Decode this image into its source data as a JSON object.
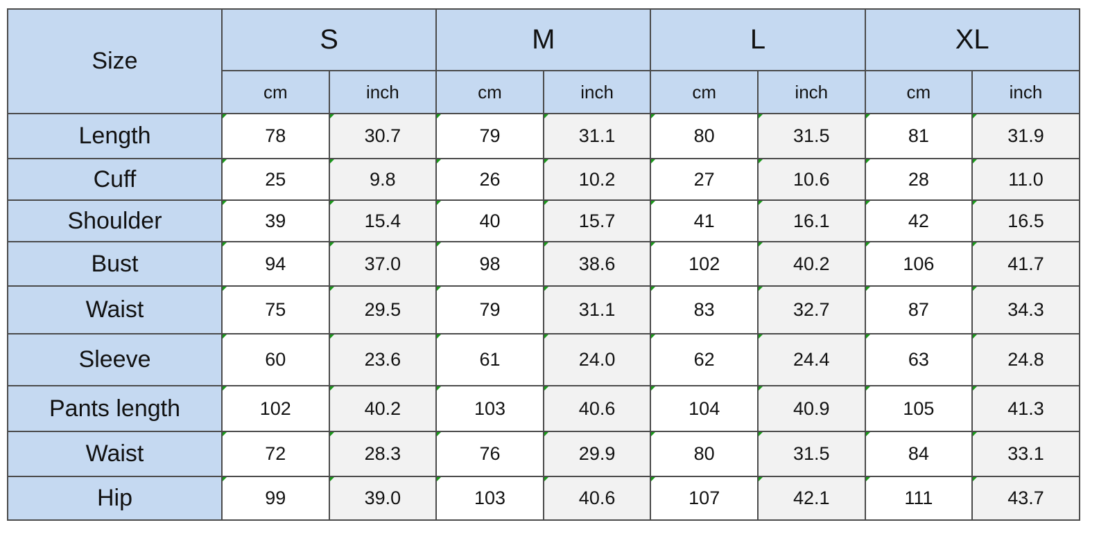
{
  "table": {
    "corner": "Size",
    "sizes": [
      "S",
      "M",
      "L",
      "XL"
    ],
    "units": [
      "cm",
      "inch",
      "cm",
      "inch",
      "cm",
      "inch",
      "cm",
      "inch"
    ],
    "rows": [
      {
        "label": "Length",
        "cells": [
          "78",
          "30.7",
          "79",
          "31.1",
          "80",
          "31.5",
          "81",
          "31.9"
        ]
      },
      {
        "label": "Cuff",
        "cells": [
          "25",
          "9.8",
          "26",
          "10.2",
          "27",
          "10.6",
          "28",
          "11.0"
        ]
      },
      {
        "label": "Shoulder",
        "cells": [
          "39",
          "15.4",
          "40",
          "15.7",
          "41",
          "16.1",
          "42",
          "16.5"
        ]
      },
      {
        "label": "Bust",
        "cells": [
          "94",
          "37.0",
          "98",
          "38.6",
          "102",
          "40.2",
          "106",
          "41.7"
        ]
      },
      {
        "label": "Waist",
        "cells": [
          "75",
          "29.5",
          "79",
          "31.1",
          "83",
          "32.7",
          "87",
          "34.3"
        ]
      },
      {
        "label": "Sleeve",
        "cells": [
          "60",
          "23.6",
          "61",
          "24.0",
          "62",
          "24.4",
          "63",
          "24.8"
        ]
      },
      {
        "label": "Pants length",
        "cells": [
          "102",
          "40.2",
          "103",
          "40.6",
          "104",
          "40.9",
          "105",
          "41.3"
        ]
      },
      {
        "label": "Waist",
        "cells": [
          "72",
          "28.3",
          "76",
          "29.9",
          "80",
          "31.5",
          "84",
          "33.1"
        ]
      },
      {
        "label": "Hip",
        "cells": [
          "99",
          "39.0",
          "103",
          "40.6",
          "107",
          "42.1",
          "111",
          "43.7"
        ]
      }
    ]
  }
}
